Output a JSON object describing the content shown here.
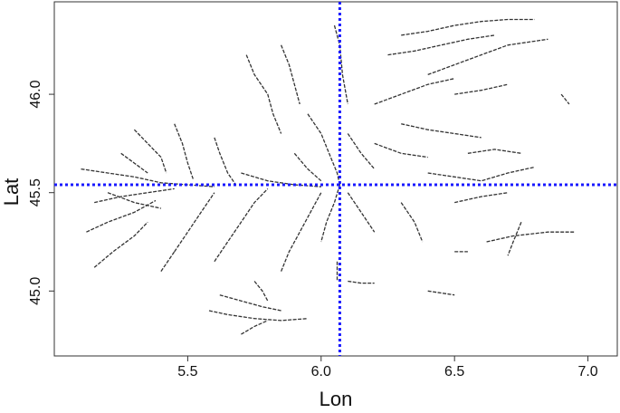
{
  "chart_data": {
    "type": "line",
    "xlabel": "Lon",
    "ylabel": "Lat",
    "xlim": [
      5.0,
      7.11
    ],
    "ylim": [
      44.67,
      46.47
    ],
    "xticks": [
      5.5,
      {
        "value": 6,
        "label": "6.0"
      },
      6.5,
      {
        "value": 7,
        "label": "7.0"
      }
    ],
    "yticks": [
      {
        "value": 45,
        "label": "45.0"
      },
      45.5,
      {
        "value": 46,
        "label": "46.0"
      }
    ],
    "line_color": "#333333",
    "vlines": [
      6.07
    ],
    "hlines": [
      45.54
    ],
    "ref_color": "#1a1aff",
    "series": [
      {
        "x": [
          5.1,
          5.2,
          5.3,
          5.4,
          5.5,
          5.6
        ],
        "values": [
          45.62,
          45.6,
          45.58,
          45.55,
          45.54,
          45.53
        ]
      },
      {
        "x": [
          5.15,
          5.25,
          5.35,
          5.45
        ],
        "values": [
          45.45,
          45.48,
          45.5,
          45.52
        ]
      },
      {
        "x": [
          5.12,
          5.2,
          5.3,
          5.38
        ],
        "values": [
          45.3,
          45.35,
          45.4,
          45.46
        ]
      },
      {
        "x": [
          5.15,
          5.22,
          5.3,
          5.35
        ],
        "values": [
          45.12,
          45.2,
          45.28,
          45.35
        ]
      },
      {
        "x": [
          5.3,
          5.35,
          5.4,
          5.42
        ],
        "values": [
          45.82,
          45.75,
          45.68,
          45.6
        ]
      },
      {
        "x": [
          5.45,
          5.48,
          5.5,
          5.52
        ],
        "values": [
          45.85,
          45.75,
          45.65,
          45.57
        ]
      },
      {
        "x": [
          5.6,
          5.62,
          5.65,
          5.68
        ],
        "values": [
          45.78,
          45.7,
          45.6,
          45.54
        ]
      },
      {
        "x": [
          5.25,
          5.3,
          5.35
        ],
        "values": [
          45.7,
          45.65,
          45.6
        ]
      },
      {
        "x": [
          5.45,
          5.5,
          5.55,
          5.6
        ],
        "values": [
          45.2,
          45.3,
          45.4,
          45.5
        ]
      },
      {
        "x": [
          5.6,
          5.65,
          5.7,
          5.75,
          5.8
        ],
        "values": [
          45.15,
          45.25,
          45.35,
          45.45,
          45.52
        ]
      },
      {
        "x": [
          5.4,
          5.45
        ],
        "values": [
          45.1,
          45.2
        ]
      },
      {
        "x": [
          5.7,
          5.8,
          5.9,
          6.0
        ],
        "values": [
          45.6,
          45.56,
          45.54,
          45.53
        ]
      },
      {
        "x": [
          5.2,
          5.3,
          5.4
        ],
        "values": [
          45.5,
          45.45,
          45.42
        ]
      },
      {
        "x": [
          5.58,
          5.65,
          5.75,
          5.85,
          5.95
        ],
        "values": [
          44.9,
          44.88,
          44.86,
          44.85,
          44.86
        ]
      },
      {
        "x": [
          5.62,
          5.7,
          5.78,
          5.85
        ],
        "values": [
          44.98,
          44.95,
          44.92,
          44.9
        ]
      },
      {
        "x": [
          5.7,
          5.75,
          5.8
        ],
        "values": [
          44.78,
          44.82,
          44.85
        ]
      },
      {
        "x": [
          5.75,
          5.78,
          5.8
        ],
        "values": [
          45.05,
          45.0,
          44.95
        ]
      },
      {
        "x": [
          5.85,
          5.88,
          5.92,
          5.96,
          6.0
        ],
        "values": [
          45.1,
          45.2,
          45.3,
          45.4,
          45.5
        ]
      },
      {
        "x": [
          5.72,
          5.75,
          5.8,
          5.82,
          5.85
        ],
        "values": [
          46.2,
          46.1,
          46.0,
          45.9,
          45.8
        ]
      },
      {
        "x": [
          5.85,
          5.88,
          5.9,
          5.92
        ],
        "values": [
          46.25,
          46.15,
          46.05,
          45.95
        ]
      },
      {
        "x": [
          5.95,
          6.0,
          6.03,
          6.06,
          6.07
        ],
        "values": [
          45.9,
          45.8,
          45.7,
          45.6,
          45.54
        ]
      },
      {
        "x": [
          6.05,
          6.07,
          6.08,
          6.1
        ],
        "values": [
          46.35,
          46.25,
          46.1,
          45.95
        ]
      },
      {
        "x": [
          6.1,
          6.15,
          6.2
        ],
        "values": [
          45.8,
          45.7,
          45.62
        ]
      },
      {
        "x": [
          5.9,
          5.95,
          6.0
        ],
        "values": [
          45.7,
          45.62,
          45.56
        ]
      },
      {
        "x": [
          6.07,
          6.05,
          6.02,
          6.0
        ],
        "values": [
          45.54,
          45.45,
          45.35,
          45.25
        ]
      },
      {
        "x": [
          6.1,
          6.15,
          6.2
        ],
        "values": [
          45.5,
          45.4,
          45.3
        ]
      },
      {
        "x": [
          6.06,
          6.06
        ],
        "values": [
          45.15,
          45.05
        ]
      },
      {
        "x": [
          6.1,
          6.15,
          6.2
        ],
        "values": [
          45.05,
          45.04,
          45.04
        ]
      },
      {
        "x": [
          6.3,
          6.4,
          6.5,
          6.6,
          6.7,
          6.8
        ],
        "values": [
          46.3,
          46.32,
          46.35,
          46.37,
          46.38,
          46.38
        ]
      },
      {
        "x": [
          6.25,
          6.35,
          6.45,
          6.55,
          6.65
        ],
        "values": [
          46.2,
          46.22,
          46.25,
          46.28,
          46.3
        ]
      },
      {
        "x": [
          6.4,
          6.5,
          6.6,
          6.7,
          6.85
        ],
        "values": [
          46.1,
          46.15,
          46.2,
          46.25,
          46.28
        ]
      },
      {
        "x": [
          6.2,
          6.3,
          6.4,
          6.5
        ],
        "values": [
          45.95,
          46.0,
          46.05,
          46.08
        ]
      },
      {
        "x": [
          6.5,
          6.6,
          6.7
        ],
        "values": [
          46.0,
          46.02,
          46.05
        ]
      },
      {
        "x": [
          6.3,
          6.4,
          6.5,
          6.6
        ],
        "values": [
          45.85,
          45.82,
          45.8,
          45.78
        ]
      },
      {
        "x": [
          6.55,
          6.65,
          6.75
        ],
        "values": [
          45.7,
          45.72,
          45.7
        ]
      },
      {
        "x": [
          6.4,
          6.5,
          6.6,
          6.7,
          6.8
        ],
        "values": [
          45.6,
          45.58,
          45.56,
          45.6,
          45.63
        ]
      },
      {
        "x": [
          6.5,
          6.6,
          6.7
        ],
        "values": [
          45.45,
          45.48,
          45.5
        ]
      },
      {
        "x": [
          6.75,
          6.72,
          6.7
        ],
        "values": [
          45.35,
          45.25,
          45.18
        ]
      },
      {
        "x": [
          6.62,
          6.72,
          6.85,
          6.95
        ],
        "values": [
          45.25,
          45.28,
          45.3,
          45.3
        ]
      },
      {
        "x": [
          6.3,
          6.35,
          6.38
        ],
        "values": [
          45.45,
          45.35,
          45.25
        ]
      },
      {
        "x": [
          6.2,
          6.3,
          6.4
        ],
        "values": [
          45.75,
          45.7,
          45.68
        ]
      },
      {
        "x": [
          6.5,
          6.55
        ],
        "values": [
          45.2,
          45.2
        ]
      },
      {
        "x": [
          6.4,
          6.5
        ],
        "values": [
          45.0,
          44.98
        ]
      },
      {
        "x": [
          6.9,
          6.93
        ],
        "values": [
          46.0,
          45.95
        ]
      }
    ]
  }
}
